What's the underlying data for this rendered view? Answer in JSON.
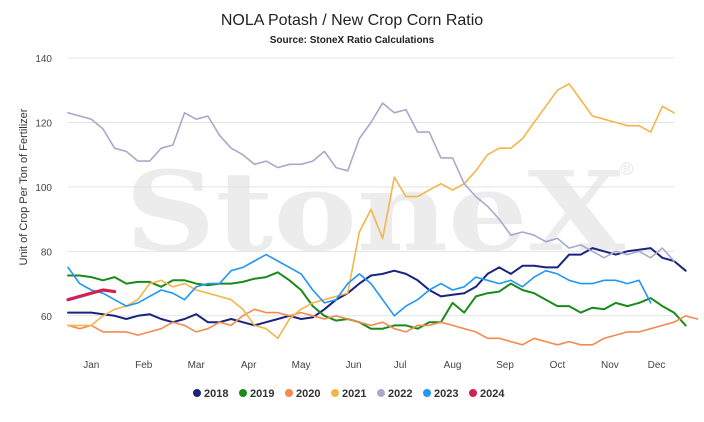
{
  "chart_data": {
    "type": "line",
    "title": "NOLA Potash / New Crop Corn Ratio",
    "subtitle": "Source: StoneX Ratio Calculations",
    "watermark": "StoneX",
    "xlabel": "",
    "ylabel": "Unit of Crop Per Ton of Fertilizer",
    "ylim": [
      50,
      140
    ],
    "yticks": [
      60,
      80,
      100,
      120,
      140
    ],
    "xlim": [
      0,
      52
    ],
    "x_tick_labels": [
      {
        "label": "Jan",
        "x": 2
      },
      {
        "label": "Feb",
        "x": 6.5
      },
      {
        "label": "Mar",
        "x": 11
      },
      {
        "label": "Apr",
        "x": 15.5
      },
      {
        "label": "May",
        "x": 20
      },
      {
        "label": "Jun",
        "x": 24.5
      },
      {
        "label": "Jul",
        "x": 28.5
      },
      {
        "label": "Aug",
        "x": 33
      },
      {
        "label": "Sep",
        "x": 37.5
      },
      {
        "label": "Oct",
        "x": 42
      },
      {
        "label": "Nov",
        "x": 46.5
      },
      {
        "label": "Dec",
        "x": 50.5
      }
    ],
    "grid": "horizontal",
    "legend_position": "bottom",
    "series": [
      {
        "name": "2018",
        "color": "#1a237e",
        "width": 2,
        "values": [
          61,
          61,
          61,
          60.5,
          60,
          59,
          60,
          60.5,
          59,
          58,
          59,
          60.5,
          58,
          58,
          59,
          58,
          57,
          58,
          59,
          60,
          59,
          59.5,
          62,
          65,
          67,
          70,
          72.5,
          73,
          74,
          73,
          71,
          68,
          66,
          66.5,
          67,
          69,
          73,
          75,
          73,
          75.5,
          75.5,
          75,
          75,
          79,
          79,
          81,
          80,
          79,
          80,
          80.5,
          81,
          78,
          77,
          74
        ]
      },
      {
        "name": "2019",
        "color": "#1b8a1b",
        "width": 2,
        "values": [
          72.5,
          72.5,
          72,
          71,
          72,
          70,
          70.5,
          70.5,
          69,
          71,
          71,
          70,
          69.5,
          70,
          70,
          70.5,
          71.5,
          72,
          73.5,
          71,
          68,
          63,
          60,
          58.5,
          59,
          58,
          56,
          56,
          57,
          57,
          56,
          58,
          58,
          64,
          61,
          66,
          67,
          67.5,
          70,
          68,
          67,
          65,
          63,
          63,
          61,
          62.5,
          62,
          64,
          63,
          64,
          65.5,
          63,
          61,
          57
        ]
      },
      {
        "name": "2020",
        "color": "#f28b50",
        "width": 1.6,
        "values": [
          57,
          56,
          57,
          55,
          55,
          55,
          54,
          55,
          56,
          58,
          57,
          55,
          56,
          58,
          57,
          60,
          62,
          61,
          61,
          60,
          61,
          60,
          59,
          60,
          59,
          58,
          57,
          58,
          56,
          55,
          57,
          57,
          58,
          57,
          56,
          55,
          53,
          53,
          52,
          51,
          53,
          52,
          51,
          52,
          51,
          51,
          53,
          54,
          55,
          55,
          56,
          57,
          58,
          60,
          59
        ]
      },
      {
        "name": "2021",
        "color": "#f2b64a",
        "width": 1.6,
        "values": [
          57,
          57,
          57,
          60,
          62,
          63,
          65,
          70,
          71,
          69,
          70,
          68,
          67,
          66,
          65,
          62,
          57,
          56,
          53,
          59,
          62,
          64,
          65,
          66,
          67,
          86,
          93,
          84,
          103,
          97,
          97,
          99,
          101,
          99,
          101,
          105,
          110,
          112,
          112,
          115,
          120,
          125,
          130,
          132,
          127,
          122,
          121,
          120,
          119,
          119,
          117,
          125,
          123
        ]
      },
      {
        "name": "2022",
        "color": "#a9a9c9",
        "width": 1.6,
        "values": [
          123,
          122,
          121,
          118,
          112,
          111,
          108,
          108,
          112,
          113,
          123,
          121,
          122,
          116,
          112,
          110,
          107,
          108,
          106,
          107,
          107,
          108,
          111,
          106,
          105,
          115,
          120,
          126,
          123,
          124,
          117,
          117,
          109,
          109,
          101,
          97,
          94,
          90,
          85,
          86,
          85,
          83,
          84,
          81,
          82,
          80,
          78,
          80,
          79,
          80,
          78,
          81,
          77
        ]
      },
      {
        "name": "2023",
        "color": "#2196f3",
        "width": 1.6,
        "values": [
          75,
          70,
          68,
          67,
          65,
          63,
          64,
          66,
          68,
          67,
          65,
          69,
          70,
          70,
          74,
          75,
          77,
          79,
          77,
          75,
          73,
          68,
          64,
          65,
          70,
          73,
          70,
          65,
          60,
          63,
          65,
          68,
          70,
          68,
          69,
          72,
          71,
          70,
          71,
          69,
          72,
          74,
          73,
          71,
          70,
          70,
          71,
          71,
          70,
          71,
          64
        ]
      },
      {
        "name": "2024",
        "color": "#d1224f",
        "width": 3.2,
        "values": [
          65,
          66,
          67,
          68,
          67.5
        ]
      }
    ]
  }
}
